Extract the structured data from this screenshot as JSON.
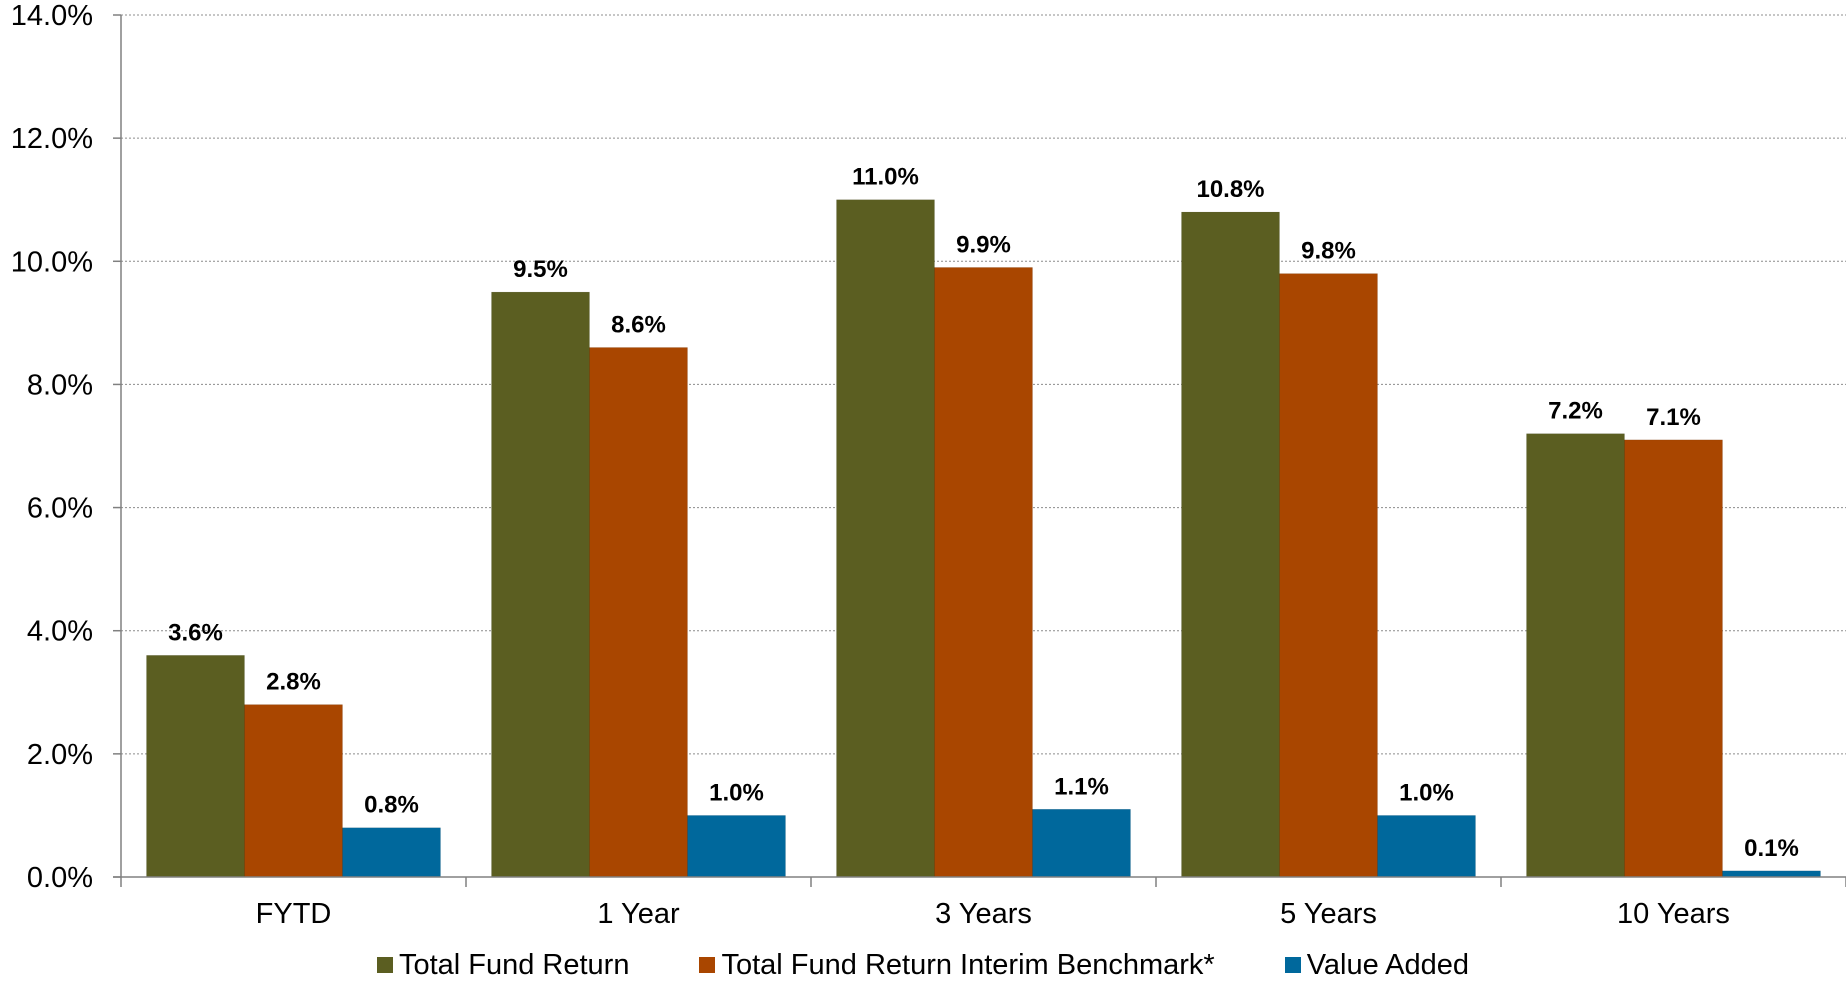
{
  "chart_data": {
    "type": "bar",
    "categories": [
      "FYTD",
      "1 Year",
      "3 Years",
      "5 Years",
      "10 Years"
    ],
    "series": [
      {
        "name": "Total Fund Return",
        "color": "#5b5e21",
        "values": [
          3.6,
          9.5,
          11.0,
          10.8,
          7.2
        ],
        "labels": [
          "3.6%",
          "9.5%",
          "11.0%",
          "10.8%",
          "7.2%"
        ]
      },
      {
        "name": "Total Fund Return Interim Benchmark*",
        "color": "#a94600",
        "values": [
          2.8,
          8.6,
          9.9,
          9.8,
          7.1
        ],
        "labels": [
          "2.8%",
          "8.6%",
          "9.9%",
          "9.8%",
          "7.1%"
        ]
      },
      {
        "name": "Value Added",
        "color": "#00689c",
        "values": [
          0.8,
          1.0,
          1.1,
          1.0,
          0.1
        ],
        "labels": [
          "0.8%",
          "1.0%",
          "1.1%",
          "1.0%",
          "0.1%"
        ]
      }
    ],
    "title": "",
    "xlabel": "",
    "ylabel": "",
    "ylim": [
      0,
      14
    ],
    "yticks": [
      "0.0%",
      "2.0%",
      "4.0%",
      "6.0%",
      "8.0%",
      "10.0%",
      "12.0%",
      "14.0%"
    ],
    "grid": "horizontal dotted",
    "legend_position": "bottom"
  }
}
